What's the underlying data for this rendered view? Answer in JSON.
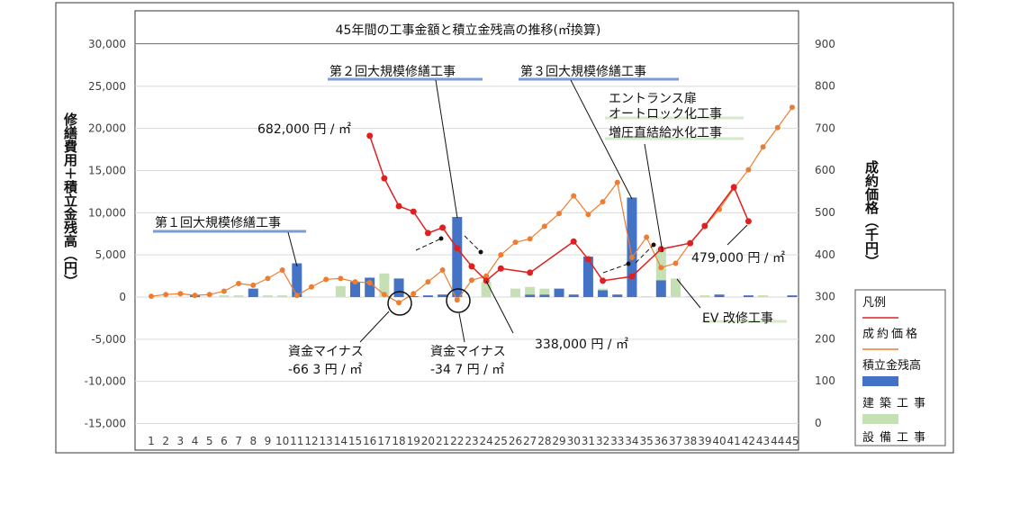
{
  "chart_data": {
    "type": "bar+line",
    "title": "45年間の工事金額と積立金残高の推移(㎡換算)",
    "ylabel_left": "修繕費用＋積立金残高（円）",
    "ylabel_right": "成約価格（千円）",
    "categories": [
      1,
      2,
      3,
      4,
      5,
      6,
      7,
      8,
      9,
      10,
      11,
      12,
      13,
      14,
      15,
      16,
      17,
      18,
      19,
      20,
      21,
      22,
      23,
      24,
      25,
      26,
      27,
      28,
      29,
      30,
      31,
      32,
      33,
      34,
      35,
      36,
      37,
      38,
      39,
      40,
      41,
      42,
      43,
      44,
      45
    ],
    "ylim_left": [
      -15000,
      30000
    ],
    "yticks_left": [
      "30,000",
      "25,000",
      "20,000",
      "15,000",
      "10,000",
      "5,000",
      "0",
      "-5,000",
      "-10,000",
      "-15,000"
    ],
    "ylim_right": [
      0,
      900
    ],
    "yticks_right": [
      "900",
      "800",
      "700",
      "600",
      "500",
      "400",
      "300",
      "200",
      "100",
      "0"
    ],
    "grid": true,
    "series": [
      {
        "name": "建築工事",
        "type": "bar",
        "axis": "left",
        "color": "#4472c4",
        "values": [
          0,
          0,
          0,
          200,
          0,
          0,
          0,
          1000,
          0,
          0,
          4000,
          0,
          0,
          0,
          1800,
          2300,
          0,
          2200,
          100,
          200,
          300,
          9500,
          0,
          0,
          0,
          0,
          300,
          300,
          1000,
          300,
          4800,
          800,
          300,
          11800,
          0,
          2000,
          0,
          0,
          0,
          300,
          0,
          200,
          0,
          0,
          200
        ]
      },
      {
        "name": "設備工事",
        "type": "bar",
        "axis": "left",
        "color": "#c5e0b4",
        "values": [
          0,
          0,
          0,
          0,
          0,
          200,
          200,
          0,
          200,
          200,
          0,
          0,
          0,
          1300,
          0,
          0,
          2800,
          0,
          0,
          0,
          0,
          0,
          0,
          1800,
          0,
          1000,
          900,
          700,
          0,
          0,
          0,
          200,
          0,
          0,
          100,
          3700,
          2200,
          100,
          200,
          0,
          0,
          0,
          200,
          0,
          0
        ]
      },
      {
        "name": "積立金残高",
        "type": "line",
        "axis": "left",
        "color": "#ed7d31",
        "values": [
          100,
          300,
          400,
          200,
          300,
          700,
          1600,
          1400,
          2200,
          3200,
          200,
          1200,
          2100,
          2200,
          1800,
          1700,
          300,
          -663,
          400,
          1800,
          3200,
          -347,
          2000,
          2500,
          5000,
          6500,
          6900,
          8400,
          9900,
          12000,
          9800,
          11300,
          13600,
          4700,
          7100,
          3500,
          4000,
          6400,
          8400,
          10400,
          12900,
          15100,
          17800,
          20100,
          22500
        ]
      },
      {
        "name": "成約価格",
        "type": "line",
        "axis": "right",
        "color": "#e02020",
        "values": [
          null,
          null,
          null,
          null,
          null,
          null,
          null,
          null,
          null,
          null,
          null,
          null,
          null,
          null,
          null,
          682,
          581,
          515,
          502,
          451,
          464,
          415,
          372,
          338,
          367,
          null,
          357,
          null,
          null,
          431,
          389,
          338,
          null,
          348,
          null,
          413,
          null,
          427,
          468,
          null,
          560,
          479,
          null,
          null,
          null
        ]
      }
    ],
    "legend": {
      "placement": "right",
      "title": "凡例",
      "items": [
        "成約価格",
        "積立金残高",
        "建築工事",
        "設備工事"
      ]
    },
    "annotations": {
      "repair1": "第１回大規模修繕工事",
      "repair2": "第２回大規模修繕工事",
      "repair3": "第３回大規模修繕工事",
      "entrance1": "エントランス扉",
      "entrance2": "オートロック化工事",
      "water": "増圧直結給水化工事",
      "ev": "EV 改修工事",
      "price_start": "682,000 円 /  ㎡",
      "price_min": "338,000 円 /  ㎡",
      "price_end": "479,000 円 /  ㎡",
      "minus1_a": "資金マイナス",
      "minus1_b": "-66 3 円 /  ㎡",
      "minus2_a": "資金マイナス",
      "minus2_b": "-34 7 円 /  ㎡"
    }
  }
}
